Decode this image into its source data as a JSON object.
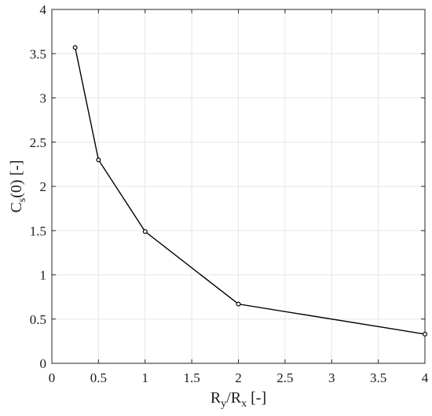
{
  "chart_data": {
    "type": "line",
    "title": "",
    "xlabel": {
      "main1": "R",
      "sub1": "y",
      "mid": "/R",
      "sub2": "x",
      "unit": " [-]"
    },
    "ylabel": {
      "main": "C",
      "sub": "s",
      "unit": "(0) [-]"
    },
    "xlim": [
      0,
      4
    ],
    "ylim": [
      0,
      4
    ],
    "xticks": [
      0,
      0.5,
      1,
      1.5,
      2,
      2.5,
      3,
      3.5,
      4
    ],
    "xtick_labels": [
      "0",
      "0.5",
      "1",
      "1.5",
      "2",
      "2.5",
      "3",
      "3.5",
      "4"
    ],
    "yticks": [
      0,
      0.5,
      1,
      1.5,
      2,
      2.5,
      3,
      3.5,
      4
    ],
    "ytick_labels": [
      "0",
      "0.5",
      "1",
      "1.5",
      "2",
      "2.5",
      "3",
      "3.5",
      "4"
    ],
    "grid": true,
    "marker": "circle",
    "line_color": "#000000",
    "grid_color": "#e6e6e6",
    "axis_color": "#262626",
    "series": [
      {
        "x": [
          0.25,
          0.5,
          1,
          2,
          4
        ],
        "y": [
          3.57,
          2.3,
          1.49,
          0.67,
          0.33
        ]
      }
    ]
  }
}
